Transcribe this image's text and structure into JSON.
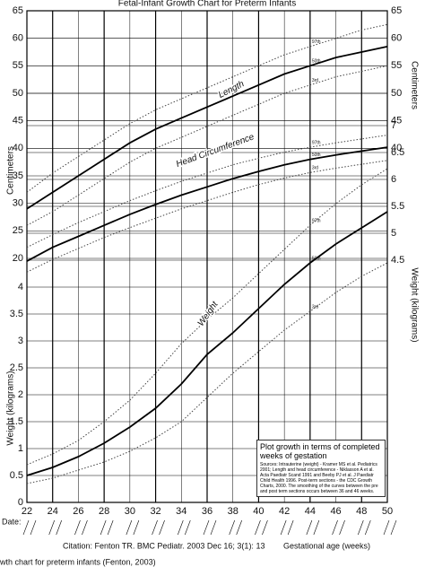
{
  "chart_data": {
    "type": "line",
    "title": "Fetal-Infant Growth Chart for Preterm Infants",
    "y_label": "Centimeters",
    "y2_label": "Weight (kilograms)",
    "x_label": "Gestational age (weeks)",
    "date_label": "Date:",
    "citation": "Citation: Fenton TR.  BMC Pediatr. 2003 Dec 16; 3(1): 13",
    "annotations": [
      "Length",
      "Head Circumference",
      "Weight"
    ],
    "note_title": "Plot growth in terms of completed weeks of gestation",
    "note_text": "Sources: Intrauterine (weight) - Kramer MS et al. Pediatrics 2001; Length and head circumference - Niklasson A et al. Acta Paediatr Scand 1991 and Beeby PJ et al. J Paediatr Child Health 1996. Post-term sections - the CDC Growth Charts, 2000. The smoothing of the curves between the pre and post term sections occurs between 36 and 46 weeks.",
    "caption": "wth chart for preterm infants (Fenton, 2003)",
    "x": [
      22,
      24,
      26,
      28,
      30,
      32,
      34,
      36,
      38,
      40,
      42,
      44,
      46,
      48,
      50
    ],
    "xlim": [
      22,
      50
    ],
    "xticks": [
      22,
      24,
      26,
      28,
      30,
      32,
      34,
      36,
      38,
      40,
      42,
      44,
      46,
      48,
      50
    ],
    "ylim": [
      20,
      65
    ],
    "yticks": [
      20,
      25,
      30,
      35,
      40,
      45,
      50,
      55,
      60,
      65
    ],
    "right_yticks": [
      40,
      45,
      50,
      55,
      60,
      65
    ],
    "y2lim": [
      0,
      7
    ],
    "y2ticks": [
      0,
      0.5,
      1,
      1.5,
      2,
      2.5,
      3,
      3.5,
      4
    ],
    "right_y2ticks": [
      4.5,
      5,
      5.5,
      6,
      6.5,
      7
    ],
    "grid": true,
    "series": [
      {
        "name": "97th",
        "axis": "y",
        "color": "#444444",
        "dotted": true,
        "values": [
          32,
          35.5,
          38.5,
          41.5,
          44.5,
          47,
          49,
          51,
          53,
          55,
          57,
          58.5,
          60,
          61.5,
          62.5
        ]
      },
      {
        "name": "50th",
        "axis": "y",
        "color": "#000000",
        "dotted": false,
        "values": [
          29,
          32,
          35,
          38,
          41,
          43.5,
          45.5,
          47.5,
          49.5,
          51.5,
          53.5,
          55,
          56.5,
          57.5,
          58.5
        ]
      },
      {
        "name": "3rd",
        "axis": "y",
        "color": "#444444",
        "dotted": true,
        "values": [
          26,
          28.5,
          31.5,
          34.5,
          37.5,
          40,
          42,
          44,
          46,
          48,
          50,
          51.5,
          53,
          54,
          55
        ]
      },
      {
        "name": "97th",
        "axis": "y",
        "color": "#444444",
        "dotted": true,
        "values": [
          22,
          24.3,
          26.5,
          28.5,
          30.5,
          32.3,
          34,
          35.5,
          37,
          38.2,
          39.3,
          40.2,
          41,
          41.7,
          42.4
        ]
      },
      {
        "name": "50th",
        "axis": "y",
        "color": "#000000",
        "dotted": false,
        "values": [
          19.5,
          22,
          24,
          26,
          28,
          29.8,
          31.5,
          33,
          34.5,
          35.8,
          37,
          38,
          38.8,
          39.5,
          40.2
        ]
      },
      {
        "name": "3rd",
        "axis": "y",
        "color": "#444444",
        "dotted": true,
        "values": [
          17.5,
          19.8,
          21.8,
          23.8,
          25.6,
          27.3,
          29,
          30.5,
          32,
          33.4,
          34.6,
          35.6,
          36.4,
          37.1,
          37.8
        ]
      },
      {
        "name": "97th",
        "axis": "y2",
        "color": "#444444",
        "dotted": true,
        "values": [
          0.7,
          0.9,
          1.15,
          1.5,
          1.9,
          2.4,
          2.95,
          3.4,
          3.8,
          4.25,
          4.7,
          5.15,
          5.55,
          5.9,
          6.2
        ]
      },
      {
        "name": "50th",
        "axis": "y2",
        "color": "#000000",
        "dotted": false,
        "values": [
          0.5,
          0.65,
          0.85,
          1.1,
          1.4,
          1.75,
          2.2,
          2.75,
          3.15,
          3.6,
          4.05,
          4.45,
          4.8,
          5.1,
          5.4
        ]
      },
      {
        "name": "3rd",
        "axis": "y2",
        "color": "#444444",
        "dotted": true,
        "values": [
          0.35,
          0.45,
          0.6,
          0.75,
          0.95,
          1.2,
          1.5,
          1.95,
          2.4,
          2.8,
          3.2,
          3.55,
          3.9,
          4.2,
          4.45
        ]
      }
    ]
  }
}
